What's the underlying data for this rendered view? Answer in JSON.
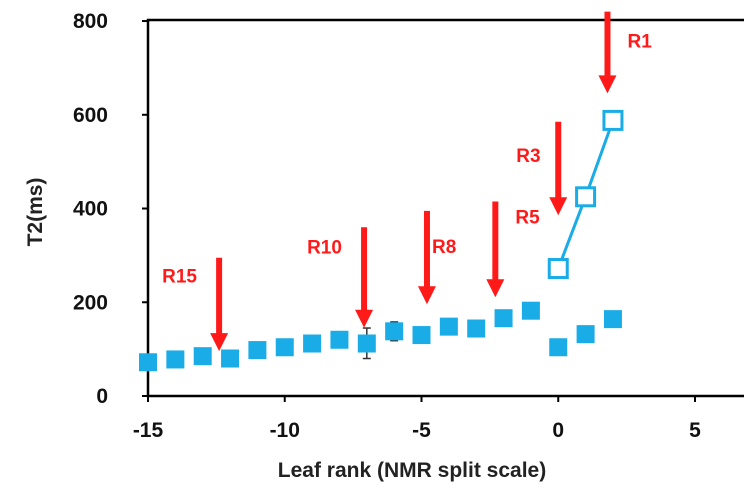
{
  "chart_data": {
    "type": "scatter",
    "xlabel": "Leaf rank (NMR split scale)",
    "ylabel": "T2(ms)",
    "xlim": [
      -15,
      7
    ],
    "ylim": [
      0,
      800
    ],
    "x_ticks": [
      -15,
      -10,
      -5,
      0,
      5
    ],
    "y_ticks": [
      0,
      200,
      400,
      600,
      800
    ],
    "grid": false,
    "colors": {
      "marker": "#1aace6",
      "arrow": "#ff1a1a",
      "axis": "#000000"
    },
    "series": [
      {
        "marker": "filled-square",
        "x": [
          -15,
          -14,
          -13,
          -12,
          -11,
          -10,
          -9,
          -8,
          -7,
          -6,
          -5,
          -4,
          -3,
          -2,
          -1
        ],
        "y": [
          72,
          78,
          85,
          80,
          98,
          104,
          112,
          120,
          112,
          138,
          130,
          148,
          144,
          166,
          182
        ]
      },
      {
        "marker": "filled-square",
        "x": [
          0,
          1,
          2
        ],
        "y": [
          104,
          132,
          164
        ]
      },
      {
        "marker": "open-square-line",
        "x": [
          0,
          1,
          2
        ],
        "y": [
          272,
          425,
          588
        ]
      }
    ],
    "error_bars": [
      {
        "x": -7,
        "y": 112,
        "low": 80,
        "high": 145
      },
      {
        "x": -6,
        "y": 138,
        "low": 118,
        "high": 158
      }
    ],
    "annotations": [
      {
        "label": "R1",
        "arrow_x": 1.8,
        "arrow_from_y": 820,
        "arrow_to_y": 650
      },
      {
        "label": "R3",
        "arrow_x": 0,
        "arrow_from_y": 585,
        "arrow_to_y": 390
      },
      {
        "label": "R5",
        "arrow_x": -2.3,
        "arrow_from_y": 415,
        "arrow_to_y": 215
      },
      {
        "label": "R8",
        "arrow_x": -4.8,
        "arrow_from_y": 395,
        "arrow_to_y": 200
      },
      {
        "label": "R10",
        "arrow_x": -7.1,
        "arrow_from_y": 360,
        "arrow_to_y": 150
      },
      {
        "label": "R15",
        "arrow_x": -12.4,
        "arrow_from_y": 295,
        "arrow_to_y": 100
      }
    ]
  }
}
